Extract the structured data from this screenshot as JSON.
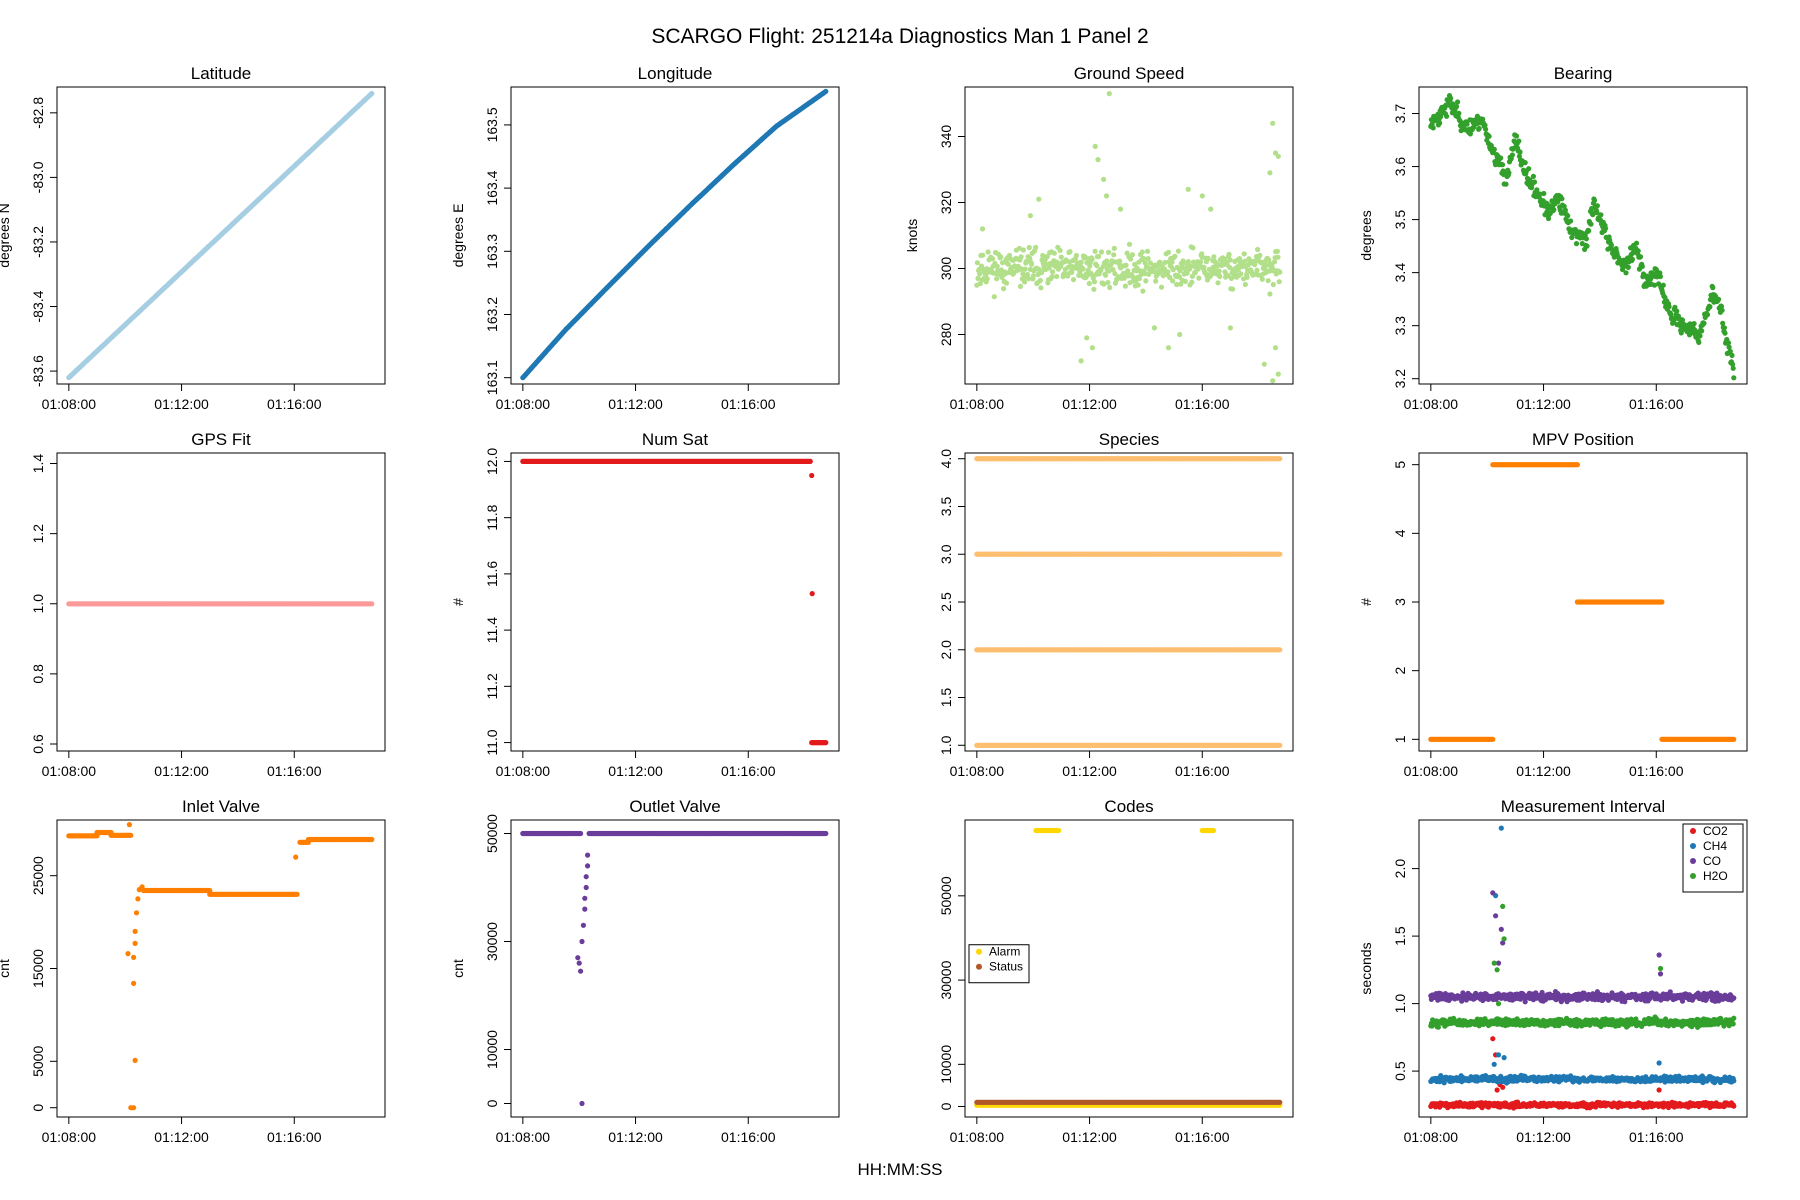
{
  "figure": {
    "title": "SCARGO Flight: 251214a  Diagnostics Man 1 Panel 2",
    "xlabel": "HH:MM:SS",
    "x_ticks": [
      "01:08:00",
      "01:12:00",
      "01:16:00"
    ]
  },
  "chart_data": [
    {
      "id": "latitude",
      "type": "scatter",
      "title": "Latitude",
      "ylabel": "degrees N",
      "color": "#a6cee3",
      "ylim": [
        -83.64,
        -82.72
      ],
      "y_ticks": [
        -83.6,
        -83.4,
        -83.2,
        -83.0,
        -82.8
      ],
      "y_tick_labels": [
        "-83.6",
        "-83.4",
        "-83.2",
        "-83.0",
        "-82.8"
      ],
      "series": [
        {
          "name": "Latitude",
          "shape": "linear",
          "x": [
            0.0,
            10.75
          ],
          "y": [
            -83.62,
            -82.74
          ]
        }
      ]
    },
    {
      "id": "longitude",
      "type": "scatter",
      "title": "Longitude",
      "ylabel": "degrees E",
      "color": "#1f78b4",
      "ylim": [
        163.09,
        163.56
      ],
      "y_ticks": [
        163.1,
        163.2,
        163.3,
        163.4,
        163.5
      ],
      "y_tick_labels": [
        "163.1",
        "163.2",
        "163.3",
        "163.4",
        "163.5"
      ],
      "series": [
        {
          "name": "Longitude",
          "shape": "curve",
          "x": [
            0.0,
            1.5,
            3.0,
            4.5,
            6.0,
            7.5,
            9.0,
            10.75
          ],
          "y": [
            163.1,
            163.175,
            163.243,
            163.31,
            163.375,
            163.438,
            163.498,
            163.553
          ]
        }
      ]
    },
    {
      "id": "ground_speed",
      "type": "scatter",
      "title": "Ground Speed",
      "ylabel": "knots",
      "color": "#b2df8a",
      "ylim": [
        265,
        355
      ],
      "y_ticks": [
        280,
        300,
        320,
        340
      ],
      "y_tick_labels": [
        "280",
        "300",
        "320",
        "340"
      ],
      "series": [
        {
          "name": "Ground Speed",
          "shape": "noisy",
          "x": [
            0.0,
            10.75
          ],
          "y": [
            300,
            300
          ],
          "noise": 4,
          "seed": 11,
          "outliers": [
            [
              4.2,
              337
            ],
            [
              4.3,
              333
            ],
            [
              4.5,
              327
            ],
            [
              4.6,
              322
            ],
            [
              4.7,
              353
            ],
            [
              3.7,
              272
            ],
            [
              3.9,
              279
            ],
            [
              4.1,
              276
            ],
            [
              10.5,
              344
            ],
            [
              10.6,
              335
            ],
            [
              10.7,
              334
            ],
            [
              10.4,
              329
            ],
            [
              10.6,
              276
            ],
            [
              10.5,
              266
            ],
            [
              10.7,
              268
            ],
            [
              10.2,
              271
            ],
            [
              7.5,
              324
            ],
            [
              6.8,
              276
            ],
            [
              1.9,
              316
            ],
            [
              2.2,
              321
            ],
            [
              0.2,
              312
            ],
            [
              0.4,
              305
            ],
            [
              8.0,
              322
            ],
            [
              8.3,
              318
            ],
            [
              7.2,
              280
            ],
            [
              6.3,
              282
            ],
            [
              5.1,
              318
            ],
            [
              9.0,
              282
            ]
          ]
        }
      ]
    },
    {
      "id": "bearing",
      "type": "scatter",
      "title": "Bearing",
      "ylabel": "degrees",
      "color": "#33a02c",
      "ylim": [
        3.19,
        3.75
      ],
      "y_ticks": [
        3.2,
        3.3,
        3.4,
        3.5,
        3.6,
        3.7
      ],
      "y_tick_labels": [
        "3.2",
        "3.3",
        "3.4",
        "3.5",
        "3.6",
        "3.7"
      ],
      "series": [
        {
          "name": "Bearing",
          "shape": "walk",
          "noise": 0.012,
          "seed": 23,
          "x": [
            0.0,
            0.7,
            1.3,
            1.8,
            2.2,
            2.7,
            3.0,
            3.4,
            3.8,
            4.2,
            4.5,
            5.0,
            5.5,
            5.8,
            6.3,
            6.8,
            7.3,
            7.6,
            8.0,
            8.5,
            9.0,
            9.5,
            10.0,
            10.3,
            10.5,
            10.75
          ],
          "y": [
            3.68,
            3.72,
            3.67,
            3.69,
            3.63,
            3.58,
            3.65,
            3.58,
            3.55,
            3.51,
            3.54,
            3.48,
            3.46,
            3.53,
            3.46,
            3.41,
            3.45,
            3.38,
            3.4,
            3.32,
            3.3,
            3.28,
            3.36,
            3.33,
            3.27,
            3.22
          ]
        }
      ]
    },
    {
      "id": "gps_fit",
      "type": "scatter",
      "title": "GPS Fit",
      "ylabel": "",
      "color": "#fb9a99",
      "ylim": [
        0.58,
        1.43
      ],
      "y_ticks": [
        0.6,
        0.8,
        1.0,
        1.2,
        1.4
      ],
      "y_tick_labels": [
        "0.6",
        "0.8",
        "1.0",
        "1.2",
        "1.4"
      ],
      "series": [
        {
          "name": "GPS Fit",
          "shape": "linear",
          "x": [
            0.0,
            10.75
          ],
          "y": [
            1.0,
            1.0
          ]
        }
      ]
    },
    {
      "id": "num_sat",
      "type": "scatter",
      "title": "Num Sat",
      "ylabel": "#",
      "color": "#e31a1c",
      "ylim": [
        10.97,
        12.03
      ],
      "y_ticks": [
        11.0,
        11.2,
        11.4,
        11.6,
        11.8,
        12.0
      ],
      "y_tick_labels": [
        "11.0",
        "11.2",
        "11.4",
        "11.6",
        "11.8",
        "12.0"
      ],
      "series": [
        {
          "name": "Num Sat",
          "shape": "segments",
          "segments": [
            [
              0.0,
              10.2,
              12.0
            ],
            [
              10.25,
              10.75,
              11.0
            ]
          ],
          "points": [
            [
              10.25,
              11.95
            ],
            [
              10.27,
              11.53
            ]
          ]
        }
      ]
    },
    {
      "id": "species",
      "type": "scatter",
      "title": "Species",
      "ylabel": "",
      "color": "#fdbf6f",
      "ylim": [
        0.94,
        4.06
      ],
      "y_ticks": [
        1.0,
        1.5,
        2.0,
        2.5,
        3.0,
        3.5,
        4.0
      ],
      "y_tick_labels": [
        "1.0",
        "1.5",
        "2.0",
        "2.5",
        "3.0",
        "3.5",
        "4.0"
      ],
      "series": [
        {
          "name": "Species",
          "shape": "segments",
          "segments": [
            [
              0.0,
              10.75,
              1.0
            ],
            [
              0.0,
              10.75,
              2.0
            ],
            [
              0.0,
              10.75,
              3.0
            ],
            [
              0.0,
              10.75,
              4.0
            ]
          ]
        }
      ]
    },
    {
      "id": "mpv_position",
      "type": "scatter",
      "title": "MPV Position",
      "ylabel": "#",
      "color": "#ff7f00",
      "ylim": [
        0.83,
        5.17
      ],
      "y_ticks": [
        1,
        2,
        3,
        4,
        5
      ],
      "y_tick_labels": [
        "1",
        "2",
        "3",
        "4",
        "5"
      ],
      "series": [
        {
          "name": "MPV Position",
          "shape": "segments",
          "segments": [
            [
              0.0,
              2.2,
              1
            ],
            [
              2.2,
              5.2,
              5
            ],
            [
              5.2,
              8.2,
              3
            ],
            [
              8.2,
              10.75,
              1
            ]
          ]
        }
      ]
    },
    {
      "id": "inlet_valve",
      "type": "scatter",
      "title": "Inlet Valve",
      "ylabel": "cnt",
      "color": "#ff7f00",
      "ylim": [
        -1000,
        31000
      ],
      "y_ticks": [
        0,
        5000,
        15000,
        25000
      ],
      "y_tick_labels": [
        "0",
        "5000",
        "15000",
        "25000"
      ],
      "series": [
        {
          "name": "Inlet Valve",
          "shape": "segments",
          "segments": [
            [
              0.0,
              1.0,
              29300
            ],
            [
              1.0,
              1.5,
              29650
            ],
            [
              1.5,
              2.2,
              29350
            ],
            [
              2.65,
              5.0,
              23400
            ],
            [
              5.0,
              8.1,
              23000
            ],
            [
              8.2,
              8.5,
              28600
            ],
            [
              8.5,
              10.75,
              28900
            ]
          ],
          "points": [
            [
              2.15,
              30500
            ],
            [
              2.1,
              16600
            ],
            [
              2.3,
              16200
            ],
            [
              2.35,
              17700
            ],
            [
              2.35,
              19000
            ],
            [
              2.3,
              13400
            ],
            [
              2.35,
              5100
            ],
            [
              2.2,
              0
            ],
            [
              2.3,
              0
            ],
            [
              2.4,
              21000
            ],
            [
              2.45,
              22500
            ],
            [
              2.5,
              23500
            ],
            [
              2.6,
              23800
            ],
            [
              8.05,
              27000
            ]
          ]
        }
      ]
    },
    {
      "id": "outlet_valve",
      "type": "scatter",
      "title": "Outlet Valve",
      "ylabel": "cnt",
      "color": "#6a3d9a",
      "ylim": [
        -2500,
        52500
      ],
      "y_ticks": [
        0,
        10000,
        30000,
        50000
      ],
      "y_tick_labels": [
        "0",
        "10000",
        "30000",
        "50000"
      ],
      "series": [
        {
          "name": "Outlet Valve",
          "shape": "segments",
          "segments": [
            [
              0.0,
              2.05,
              50000
            ],
            [
              2.35,
              10.75,
              50000
            ]
          ],
          "points": [
            [
              1.95,
              27000
            ],
            [
              2.0,
              26000
            ],
            [
              2.05,
              24500
            ],
            [
              2.1,
              30000
            ],
            [
              2.15,
              33000
            ],
            [
              2.2,
              36000
            ],
            [
              2.2,
              38000
            ],
            [
              2.25,
              40000
            ],
            [
              2.25,
              42000
            ],
            [
              2.3,
              44000
            ],
            [
              2.3,
              46000
            ],
            [
              2.1,
              0
            ]
          ]
        }
      ]
    },
    {
      "id": "codes",
      "type": "scatter",
      "title": "Codes",
      "ylabel": "",
      "color": "#ffd700",
      "ylim": [
        -2500,
        68000
      ],
      "y_ticks": [
        0,
        10000,
        30000,
        50000
      ],
      "y_tick_labels": [
        "0",
        "10000",
        "30000",
        "50000"
      ],
      "legend": {
        "position": "left",
        "entries": [
          {
            "name": "Alarm",
            "color": "#ffd700"
          },
          {
            "name": "Status",
            "color": "#b15928"
          }
        ]
      },
      "series": [
        {
          "name": "Alarm",
          "color": "#ffd700",
          "shape": "segments",
          "segments": [
            [
              2.1,
              2.9,
              65500
            ],
            [
              8.0,
              8.4,
              65500
            ],
            [
              0.0,
              10.75,
              300
            ]
          ]
        },
        {
          "name": "Status",
          "color": "#b15928",
          "shape": "segments",
          "segments": [
            [
              0.0,
              10.75,
              1000
            ]
          ]
        }
      ]
    },
    {
      "id": "measurement_interval",
      "type": "scatter",
      "title": "Measurement Interval",
      "ylabel": "seconds",
      "color": "#000000",
      "ylim": [
        0.16,
        2.36
      ],
      "y_ticks": [
        0.5,
        1.0,
        1.5,
        2.0
      ],
      "y_tick_labels": [
        "0.5",
        "1.0",
        "1.5",
        "2.0"
      ],
      "legend": {
        "position": "top-right",
        "entries": [
          {
            "name": "CO2",
            "color": "#e31a1c"
          },
          {
            "name": "CH4",
            "color": "#1f78b4"
          },
          {
            "name": "CO",
            "color": "#6a3d9a"
          },
          {
            "name": "H2O",
            "color": "#33a02c"
          }
        ]
      },
      "series": [
        {
          "name": "CO2",
          "color": "#e31a1c",
          "shape": "noisy",
          "x": [
            0.0,
            10.75
          ],
          "y": [
            0.25,
            0.25
          ],
          "noise": 0.012,
          "seed": 31,
          "outliers": [
            [
              2.2,
              0.74
            ],
            [
              2.3,
              0.62
            ],
            [
              2.35,
              0.36
            ],
            [
              2.45,
              0.4
            ],
            [
              2.55,
              0.38
            ],
            [
              8.1,
              0.36
            ]
          ]
        },
        {
          "name": "CH4",
          "color": "#1f78b4",
          "shape": "noisy",
          "x": [
            0.0,
            10.75
          ],
          "y": [
            0.44,
            0.44
          ],
          "noise": 0.015,
          "seed": 37,
          "outliers": [
            [
              2.5,
              2.3
            ],
            [
              2.3,
              1.8
            ],
            [
              2.25,
              0.55
            ],
            [
              2.4,
              0.62
            ],
            [
              2.6,
              0.6
            ],
            [
              8.1,
              0.56
            ]
          ]
        },
        {
          "name": "CO",
          "color": "#6a3d9a",
          "shape": "noisy",
          "x": [
            0.0,
            10.75
          ],
          "y": [
            1.05,
            1.05
          ],
          "noise": 0.02,
          "seed": 41,
          "outliers": [
            [
              2.2,
              1.82
            ],
            [
              2.3,
              1.65
            ],
            [
              2.4,
              1.3
            ],
            [
              2.5,
              1.55
            ],
            [
              2.55,
              1.45
            ],
            [
              8.1,
              1.36
            ],
            [
              8.15,
              1.22
            ]
          ]
        },
        {
          "name": "H2O",
          "color": "#33a02c",
          "shape": "noisy",
          "x": [
            0.0,
            10.75
          ],
          "y": [
            0.86,
            0.86
          ],
          "noise": 0.02,
          "seed": 43,
          "outliers": [
            [
              2.25,
              1.3
            ],
            [
              2.35,
              1.25
            ],
            [
              2.55,
              1.72
            ],
            [
              2.6,
              1.48
            ],
            [
              2.4,
              1.0
            ],
            [
              8.15,
              1.26
            ]
          ]
        }
      ]
    }
  ]
}
